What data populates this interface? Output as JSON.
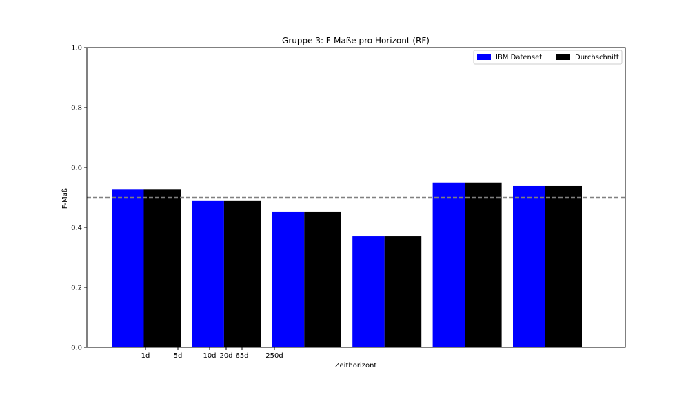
{
  "chart_data": {
    "type": "bar",
    "title": "Gruppe 3: F-Maße pro Horizont (RF)",
    "xlabel": "Zeithorizont",
    "ylabel": "F-Maß",
    "ylim": [
      0,
      1.0
    ],
    "yticks": [
      "0.0",
      "0.2",
      "0.4",
      "0.6",
      "0.8",
      "1.0"
    ],
    "xtick_labels": [
      "1d",
      "5d",
      "10d",
      "20d",
      "65d",
      "250d"
    ],
    "groups": 6,
    "series": [
      {
        "name": "IBM Datenset",
        "color": "#0000ff",
        "values": [
          0.528,
          0.49,
          0.453,
          0.37,
          0.55,
          0.538
        ]
      },
      {
        "name": "Durchschnitt",
        "color": "#000000",
        "values": [
          0.528,
          0.49,
          0.453,
          0.37,
          0.55,
          0.538
        ]
      }
    ],
    "reference_line": {
      "y": 0.5,
      "color": "#808080",
      "style": "dashed"
    },
    "legend_position": "top-right",
    "grid": false
  }
}
